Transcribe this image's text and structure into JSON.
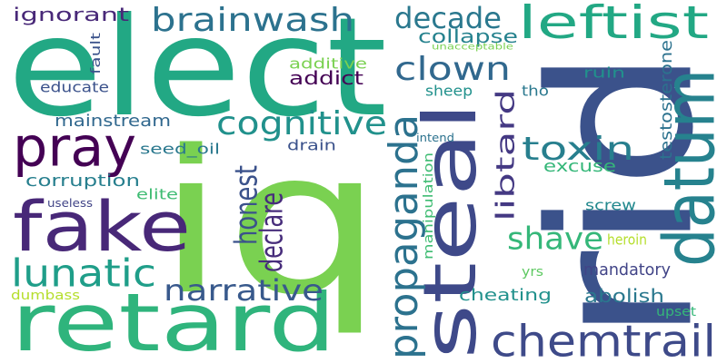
{
  "words": [
    {
      "text": "elect",
      "color": "#22a884"
    },
    {
      "text": "iq",
      "color": "#7ad151"
    },
    {
      "text": "rid",
      "color": "#3b528b"
    },
    {
      "text": "retard",
      "color": "#2fb47c"
    },
    {
      "text": "steal",
      "color": "#3e4989"
    },
    {
      "text": "fake",
      "color": "#482878"
    },
    {
      "text": "datum",
      "color": "#26828e"
    },
    {
      "text": "pray",
      "color": "#440154"
    },
    {
      "text": "leftist",
      "color": "#22a884"
    },
    {
      "text": "chemtrail",
      "color": "#3e4a89"
    },
    {
      "text": "propaganda",
      "color": "#2c728e"
    },
    {
      "text": "lunatic",
      "color": "#1f9e89"
    },
    {
      "text": "brainwash",
      "color": "#2c728e"
    },
    {
      "text": "clown",
      "color": "#31688e"
    },
    {
      "text": "cognitive",
      "color": "#21918c"
    },
    {
      "text": "toxin",
      "color": "#277f8e"
    },
    {
      "text": "narrative",
      "color": "#38598c"
    },
    {
      "text": "decade",
      "color": "#2a788e"
    },
    {
      "text": "honest",
      "color": "#3b528b"
    },
    {
      "text": "declare",
      "color": "#472d7b"
    },
    {
      "text": "libtard",
      "color": "#443983"
    },
    {
      "text": "shave",
      "color": "#35b779"
    },
    {
      "text": "corruption",
      "color": "#277f8e"
    },
    {
      "text": "mainstream",
      "color": "#31688e"
    },
    {
      "text": "ignorant",
      "color": "#482878"
    },
    {
      "text": "collapse",
      "color": "#26828e"
    },
    {
      "text": "cheating",
      "color": "#21918c"
    },
    {
      "text": "abolish",
      "color": "#2a788e"
    },
    {
      "text": "mandatory",
      "color": "#414487"
    },
    {
      "text": "testosterone",
      "color": "#2c728e"
    },
    {
      "text": "addict",
      "color": "#440154"
    },
    {
      "text": "additive",
      "color": "#7ad151"
    },
    {
      "text": "educate",
      "color": "#3b528b"
    },
    {
      "text": "seed_oil",
      "color": "#2a788e"
    },
    {
      "text": "drain",
      "color": "#3b528b"
    },
    {
      "text": "excuse",
      "color": "#35b779"
    },
    {
      "text": "elite",
      "color": "#3fbc73"
    },
    {
      "text": "sheep",
      "color": "#21918c"
    },
    {
      "text": "screw",
      "color": "#23898e"
    },
    {
      "text": "heroin",
      "color": "#b5de2b"
    },
    {
      "text": "manipulation",
      "color": "#3fbc73"
    },
    {
      "text": "ruin",
      "color": "#21918c"
    },
    {
      "text": "tho",
      "color": "#2a788e"
    },
    {
      "text": "dumbass",
      "color": "#b5de2b"
    },
    {
      "text": "fault",
      "color": "#3b528b"
    },
    {
      "text": "yrs",
      "color": "#5ec962"
    },
    {
      "text": "upset",
      "color": "#35b779"
    },
    {
      "text": "intend",
      "color": "#2c728e"
    },
    {
      "text": "useless",
      "color": "#414487"
    },
    {
      "text": "unacceptable",
      "color": "#7ad151"
    }
  ]
}
